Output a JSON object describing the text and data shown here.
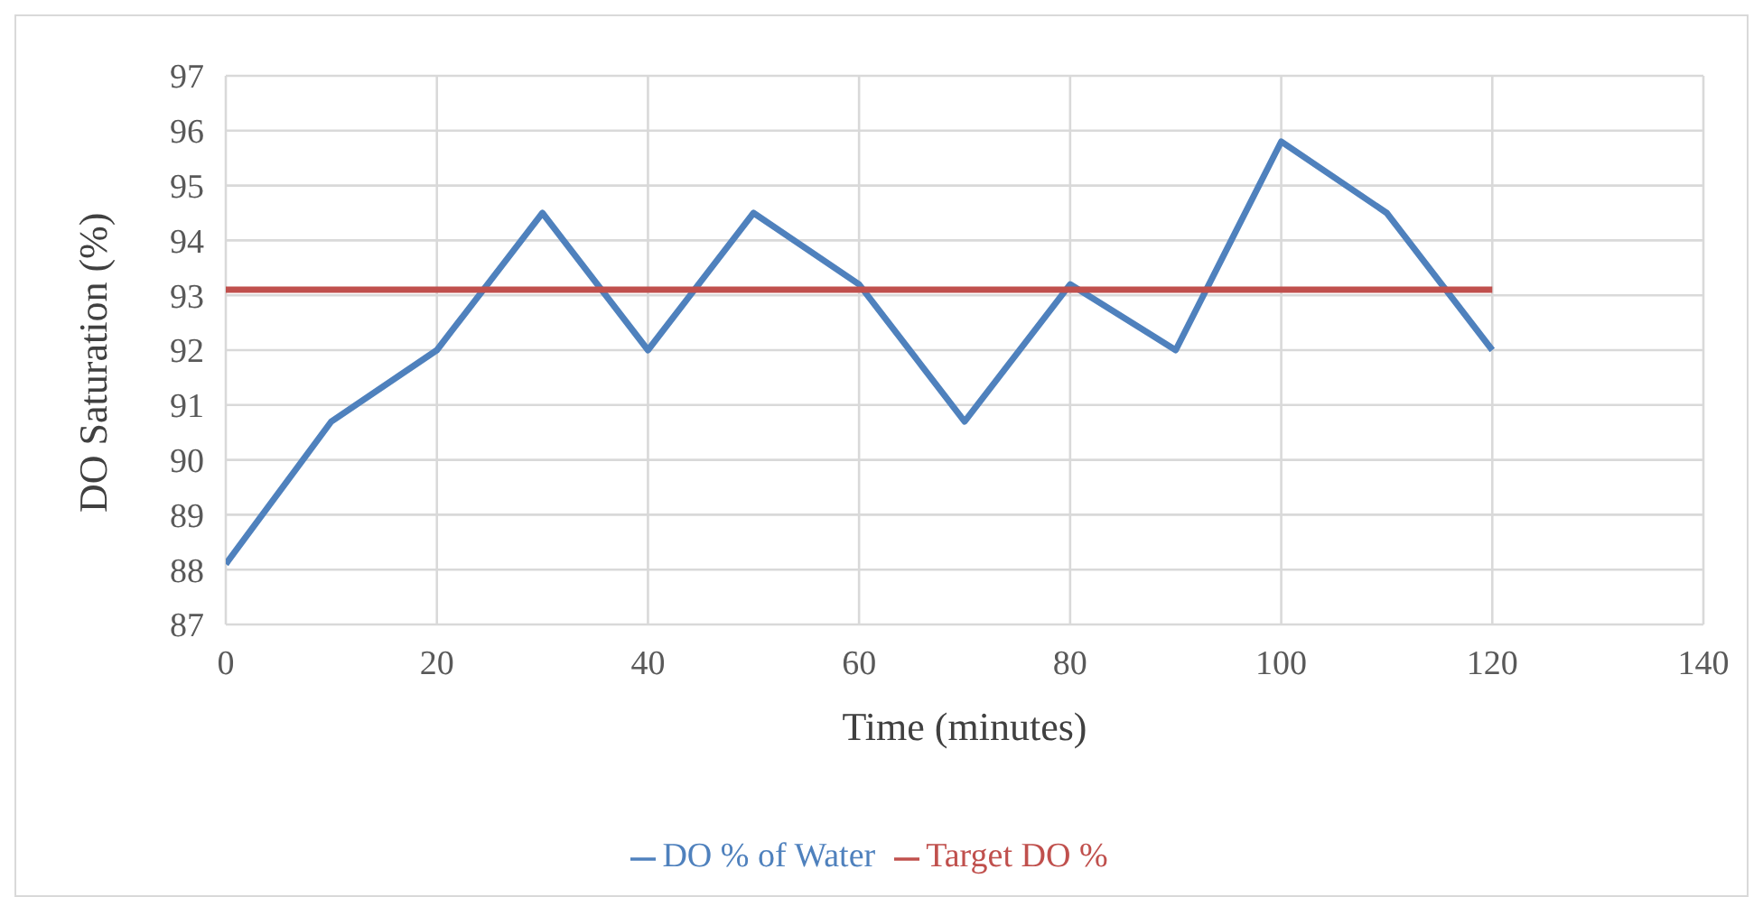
{
  "chart_data": {
    "type": "line",
    "xlabel": "Time (minutes)",
    "ylabel": "DO Saturation (%)",
    "series": [
      {
        "name": "DO % of Water",
        "color": "#4f81bd",
        "x": [
          0,
          10,
          20,
          30,
          40,
          50,
          60,
          70,
          80,
          90,
          100,
          110,
          120
        ],
        "values": [
          88.1,
          90.7,
          92.0,
          94.5,
          92.0,
          94.5,
          93.2,
          90.7,
          93.2,
          92.0,
          95.8,
          94.5,
          92.0
        ]
      },
      {
        "name": "Target DO %",
        "color": "#c0504d",
        "x": [
          0,
          120
        ],
        "values": [
          93.1,
          93.1
        ]
      }
    ],
    "xlim": [
      0,
      140
    ],
    "xticks": [
      0,
      20,
      40,
      60,
      80,
      100,
      120,
      140
    ],
    "ylim": [
      87,
      97
    ],
    "yticks": [
      87,
      88,
      89,
      90,
      91,
      92,
      93,
      94,
      95,
      96,
      97
    ],
    "grid": true,
    "legend": "bottom",
    "marker": "none",
    "line_style": "solid"
  }
}
